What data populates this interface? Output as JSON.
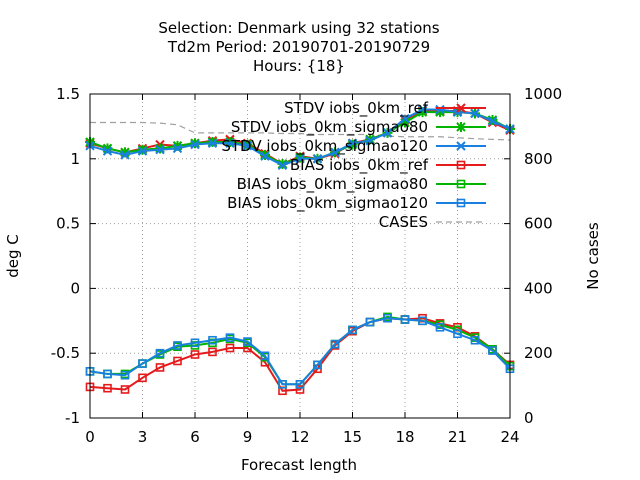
{
  "chart_data": {
    "type": "line",
    "title_lines": [
      "Selection: Denmark using    32 stations",
      "Td2m   Period: 20190701-20190729",
      "Hours: {18}"
    ],
    "xlabel": "Forecast length",
    "ylabel": "deg C",
    "y2label": "No cases",
    "xlim": [
      0,
      24
    ],
    "ylim": [
      -1,
      1.5
    ],
    "y2lim": [
      0,
      1000
    ],
    "xticks": [
      0,
      3,
      6,
      9,
      12,
      15,
      18,
      21,
      24
    ],
    "yticks": [
      -1,
      -0.5,
      0,
      0.5,
      1,
      1.5
    ],
    "yticklabels": [
      "-1",
      "-0.5",
      "0",
      "0.5",
      "1",
      "1.5"
    ],
    "y2ticks": [
      0,
      200,
      400,
      600,
      800,
      1000
    ],
    "grid": true,
    "legend_position": "top-right",
    "x": [
      0,
      1,
      2,
      3,
      4,
      5,
      6,
      7,
      8,
      9,
      10,
      11,
      12,
      13,
      14,
      15,
      16,
      17,
      18,
      19,
      20,
      21,
      22,
      23,
      24
    ],
    "series": [
      {
        "name": "STDV iobs_0km_ref",
        "color": "#e41a1c",
        "marker": "x",
        "axis": "y1",
        "values": [
          1.12,
          1.08,
          1.05,
          1.08,
          1.11,
          1.1,
          1.12,
          1.14,
          1.15,
          1.12,
          1.04,
          0.96,
          1.02,
          1.0,
          1.04,
          1.12,
          1.15,
          1.2,
          1.3,
          1.37,
          1.37,
          1.37,
          1.35,
          1.28,
          1.22
        ]
      },
      {
        "name": "STDV iobs_0km_sigmao80",
        "color": "#00b400",
        "marker": "star",
        "axis": "y1",
        "values": [
          1.13,
          1.08,
          1.05,
          1.07,
          1.08,
          1.1,
          1.12,
          1.13,
          1.13,
          1.11,
          1.03,
          0.96,
          1.01,
          1.0,
          1.05,
          1.11,
          1.15,
          1.2,
          1.28,
          1.36,
          1.36,
          1.36,
          1.35,
          1.3,
          1.23
        ]
      },
      {
        "name": "STDV iobs_0km_sigmao120",
        "color": "#1a80e0",
        "marker": "x",
        "axis": "y1",
        "values": [
          1.1,
          1.06,
          1.03,
          1.06,
          1.07,
          1.08,
          1.11,
          1.12,
          1.12,
          1.1,
          1.02,
          0.95,
          1.0,
          1.0,
          1.05,
          1.12,
          1.14,
          1.2,
          1.31,
          1.38,
          1.38,
          1.36,
          1.35,
          1.29,
          1.23
        ]
      },
      {
        "name": "BIAS iobs_0km_ref",
        "color": "#e41a1c",
        "marker": "square",
        "axis": "y1",
        "values": [
          -0.76,
          -0.77,
          -0.78,
          -0.69,
          -0.61,
          -0.56,
          -0.51,
          -0.49,
          -0.46,
          -0.46,
          -0.57,
          -0.79,
          -0.78,
          -0.62,
          -0.44,
          -0.33,
          -0.26,
          -0.23,
          -0.24,
          -0.23,
          -0.27,
          -0.3,
          -0.37,
          -0.47,
          -0.59
        ]
      },
      {
        "name": "BIAS iobs_0km_sigmao80",
        "color": "#00b400",
        "marker": "square",
        "axis": "y1",
        "values": [
          -0.64,
          -0.66,
          -0.66,
          -0.58,
          -0.51,
          -0.45,
          -0.44,
          -0.42,
          -0.39,
          -0.42,
          -0.53,
          -0.74,
          -0.74,
          -0.59,
          -0.43,
          -0.32,
          -0.26,
          -0.22,
          -0.24,
          -0.25,
          -0.28,
          -0.32,
          -0.38,
          -0.47,
          -0.6
        ]
      },
      {
        "name": "BIAS iobs_0km_sigmao120",
        "color": "#1a80e0",
        "marker": "square",
        "axis": "y1",
        "values": [
          -0.64,
          -0.66,
          -0.67,
          -0.58,
          -0.5,
          -0.44,
          -0.42,
          -0.4,
          -0.38,
          -0.41,
          -0.52,
          -0.74,
          -0.74,
          -0.59,
          -0.43,
          -0.32,
          -0.26,
          -0.23,
          -0.24,
          -0.25,
          -0.3,
          -0.35,
          -0.4,
          -0.48,
          -0.62
        ]
      },
      {
        "name": "CASES",
        "color": "#a0a0a0",
        "marker": "none",
        "dashed": true,
        "axis": "y2",
        "values": [
          912,
          912,
          912,
          912,
          910,
          905,
          880,
          880,
          880,
          880,
          880,
          878,
          878,
          875,
          875,
          875,
          875,
          870,
          868,
          868,
          868,
          865,
          862,
          860,
          858
        ]
      }
    ]
  }
}
